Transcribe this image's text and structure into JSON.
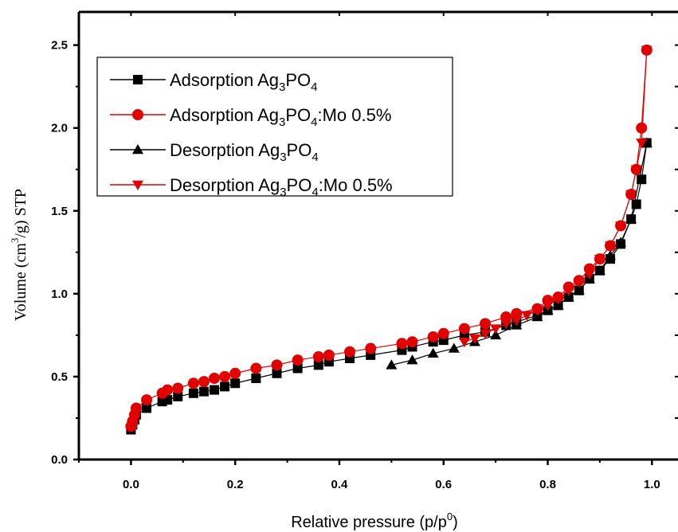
{
  "chart_data": {
    "type": "line",
    "xlabel": "Relative pressure (p/p0)",
    "xlabel_parts": {
      "main": "Relative pressure (p/p",
      "sup": "0",
      "end": ")"
    },
    "ylabel": "Volume (cm3/g) STP",
    "ylabel_parts": {
      "pre": "Volume (cm",
      "sup": "3",
      "post": "/g) STP"
    },
    "xlim": [
      -0.1,
      1.05
    ],
    "ylim": [
      0.0,
      2.7
    ],
    "xticks": [
      "0.0",
      "0.2",
      "0.4",
      "0.6",
      "0.8",
      "1.0"
    ],
    "xtick_values": [
      0.0,
      0.2,
      0.4,
      0.6,
      0.8,
      1.0
    ],
    "yticks": [
      "0.0",
      "0.5",
      "1.0",
      "1.5",
      "2.0",
      "2.5"
    ],
    "ytick_values": [
      0.0,
      0.5,
      1.0,
      1.5,
      2.0,
      2.5
    ],
    "legend_placement": "top-left",
    "series": [
      {
        "name": "Adsorption Ag3PO4",
        "name_parts": [
          "Adsorption Ag",
          "3",
          "PO",
          "4",
          ""
        ],
        "marker": "square",
        "color": "#000000",
        "x": [
          0.0,
          0.003,
          0.007,
          0.01,
          0.03,
          0.06,
          0.07,
          0.09,
          0.12,
          0.14,
          0.16,
          0.18,
          0.2,
          0.24,
          0.28,
          0.32,
          0.36,
          0.38,
          0.42,
          0.46,
          0.52,
          0.54,
          0.58,
          0.6,
          0.64,
          0.68,
          0.72,
          0.74,
          0.78,
          0.8,
          0.82,
          0.84,
          0.86,
          0.88,
          0.9,
          0.92,
          0.94,
          0.96,
          0.97,
          0.98,
          0.99
        ],
        "y": [
          0.18,
          0.21,
          0.24,
          0.27,
          0.31,
          0.35,
          0.36,
          0.38,
          0.4,
          0.41,
          0.42,
          0.44,
          0.46,
          0.49,
          0.52,
          0.55,
          0.57,
          0.59,
          0.61,
          0.63,
          0.66,
          0.68,
          0.71,
          0.72,
          0.75,
          0.77,
          0.81,
          0.83,
          0.87,
          0.9,
          0.93,
          0.98,
          1.02,
          1.09,
          1.14,
          1.21,
          1.3,
          1.45,
          1.54,
          1.69,
          1.91
        ]
      },
      {
        "name": "Adsorption Ag3PO4:Mo 0.5%",
        "name_parts": [
          "Adsorption Ag",
          "3",
          "PO",
          "4",
          ":Mo 0.5%"
        ],
        "marker": "circle",
        "color": "#e00000",
        "x": [
          0.0,
          0.003,
          0.007,
          0.01,
          0.03,
          0.06,
          0.07,
          0.09,
          0.12,
          0.14,
          0.16,
          0.18,
          0.2,
          0.24,
          0.28,
          0.32,
          0.36,
          0.38,
          0.42,
          0.46,
          0.52,
          0.54,
          0.58,
          0.6,
          0.64,
          0.68,
          0.72,
          0.74,
          0.78,
          0.8,
          0.82,
          0.84,
          0.86,
          0.88,
          0.9,
          0.92,
          0.94,
          0.96,
          0.97,
          0.98,
          0.99
        ],
        "y": [
          0.2,
          0.23,
          0.27,
          0.31,
          0.36,
          0.4,
          0.42,
          0.43,
          0.46,
          0.47,
          0.49,
          0.5,
          0.52,
          0.55,
          0.57,
          0.6,
          0.62,
          0.63,
          0.65,
          0.67,
          0.7,
          0.71,
          0.74,
          0.76,
          0.79,
          0.82,
          0.86,
          0.88,
          0.91,
          0.96,
          0.98,
          1.04,
          1.08,
          1.15,
          1.21,
          1.29,
          1.41,
          1.6,
          1.75,
          2.0,
          2.47
        ]
      },
      {
        "name": "Desorption Ag3PO4",
        "name_parts": [
          "Desorption Ag",
          "3",
          "PO",
          "4",
          ""
        ],
        "marker": "triangle-up",
        "color": "#000000",
        "x": [
          0.99,
          0.96,
          0.94,
          0.92,
          0.9,
          0.88,
          0.86,
          0.84,
          0.82,
          0.8,
          0.78,
          0.74,
          0.7,
          0.66,
          0.62,
          0.58,
          0.54,
          0.5
        ],
        "y": [
          1.91,
          1.45,
          1.31,
          1.23,
          1.14,
          1.09,
          1.02,
          0.98,
          0.93,
          0.9,
          0.86,
          0.81,
          0.75,
          0.71,
          0.67,
          0.64,
          0.6,
          0.57
        ]
      },
      {
        "name": "Desorption Ag3PO4:Mo 0.5%",
        "name_parts": [
          "Desorption Ag",
          "3",
          "PO",
          "4",
          ":Mo 0.5%"
        ],
        "marker": "triangle-down",
        "color": "#e00000",
        "x": [
          0.99,
          0.98,
          0.97,
          0.96,
          0.94,
          0.92,
          0.9,
          0.88,
          0.86,
          0.84,
          0.82,
          0.8,
          0.78,
          0.76,
          0.74,
          0.72,
          0.7,
          0.68,
          0.66,
          0.64
        ],
        "y": [
          2.47,
          1.91,
          1.75,
          1.6,
          1.41,
          1.29,
          1.21,
          1.12,
          1.07,
          1.02,
          0.97,
          0.93,
          0.9,
          0.87,
          0.84,
          0.82,
          0.79,
          0.76,
          0.73,
          0.71
        ]
      }
    ]
  }
}
